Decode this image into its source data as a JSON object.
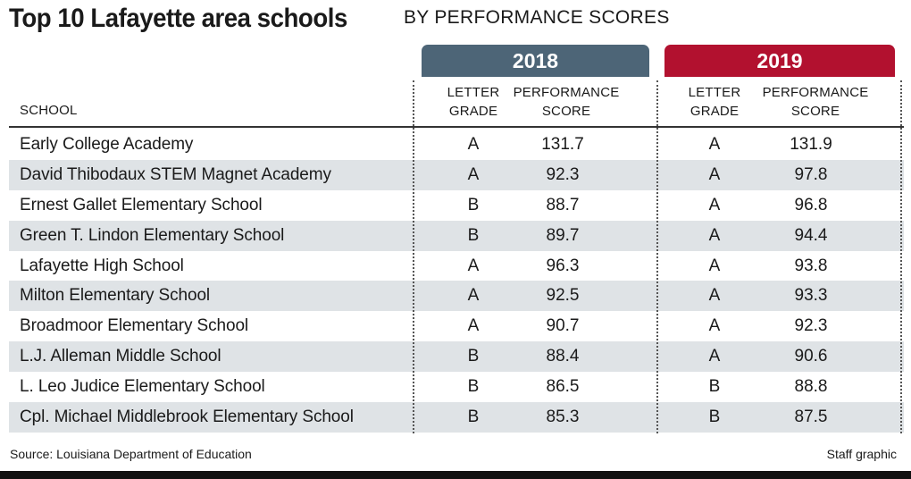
{
  "title": "Top 10 Lafayette area schools",
  "subtitle": "BY PERFORMANCE SCORES",
  "years": [
    "2018",
    "2019"
  ],
  "columns": {
    "school": "SCHOOL",
    "letter_grade": [
      "LETTER",
      "GRADE"
    ],
    "performance_score": [
      "PERFORMANCE",
      "SCORE"
    ]
  },
  "colors": {
    "year_2018": "#4d6577",
    "year_2019": "#b2112f",
    "row_shade": "#dfe3e6"
  },
  "chart_data": {
    "type": "table",
    "title": "Top 10 Lafayette area schools",
    "subtitle": "BY PERFORMANCE SCORES",
    "columns": [
      "SCHOOL",
      "2018 LETTER GRADE",
      "2018 PERFORMANCE SCORE",
      "2019 LETTER GRADE",
      "2019 PERFORMANCE SCORE"
    ],
    "rows": [
      {
        "school": "Early College Academy",
        "grade_2018": "A",
        "score_2018": "131.7",
        "grade_2019": "A",
        "score_2019": "131.9"
      },
      {
        "school": "David Thibodaux STEM Magnet Academy",
        "grade_2018": "A",
        "score_2018": "92.3",
        "grade_2019": "A",
        "score_2019": "97.8"
      },
      {
        "school": "Ernest Gallet Elementary School",
        "grade_2018": "B",
        "score_2018": "88.7",
        "grade_2019": "A",
        "score_2019": "96.8"
      },
      {
        "school": "Green T. Lindon Elementary School",
        "grade_2018": "B",
        "score_2018": "89.7",
        "grade_2019": "A",
        "score_2019": "94.4"
      },
      {
        "school": "Lafayette High School",
        "grade_2018": "A",
        "score_2018": "96.3",
        "grade_2019": "A",
        "score_2019": "93.8"
      },
      {
        "school": "Milton Elementary School",
        "grade_2018": "A",
        "score_2018": "92.5",
        "grade_2019": "A",
        "score_2019": "93.3"
      },
      {
        "school": "Broadmoor Elementary School",
        "grade_2018": "A",
        "score_2018": "90.7",
        "grade_2019": "A",
        "score_2019": "92.3"
      },
      {
        "school": "L.J. Alleman Middle School",
        "grade_2018": "B",
        "score_2018": "88.4",
        "grade_2019": "A",
        "score_2019": "90.6"
      },
      {
        "school": "L. Leo Judice Elementary School",
        "grade_2018": "B",
        "score_2018": "86.5",
        "grade_2019": "B",
        "score_2019": "88.8"
      },
      {
        "school": "Cpl. Michael Middlebrook Elementary School",
        "grade_2018": "B",
        "score_2018": "85.3",
        "grade_2019": "B",
        "score_2019": "87.5"
      }
    ]
  },
  "footer": {
    "source": "Source: Louisiana Department of Education",
    "credit": "Staff graphic"
  }
}
